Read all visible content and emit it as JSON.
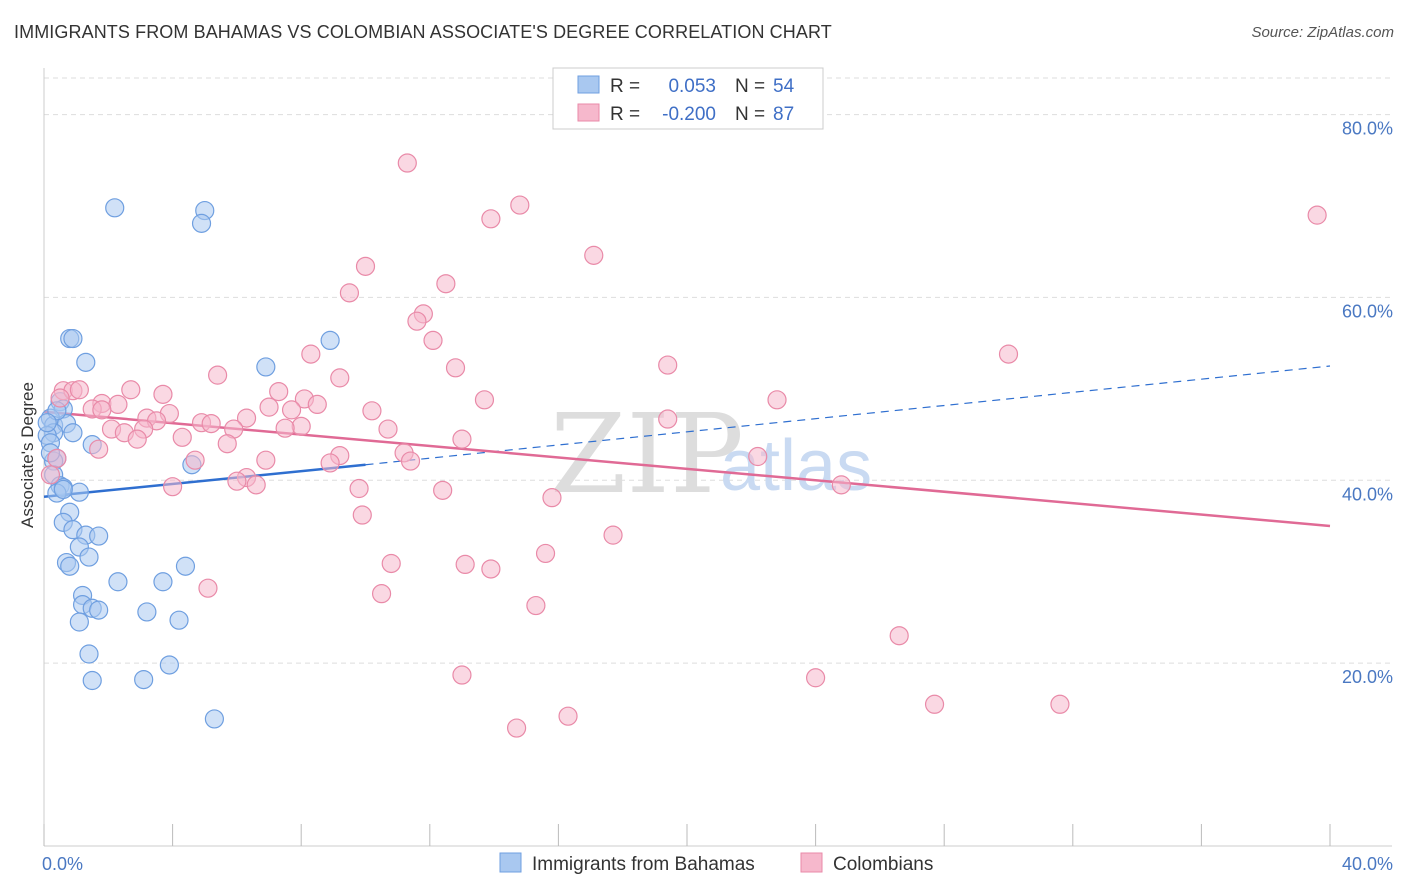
{
  "title": "IMMIGRANTS FROM BAHAMAS VS COLOMBIAN ASSOCIATE'S DEGREE CORRELATION CHART",
  "source": "Source: ZipAtlas.com",
  "watermark": {
    "zip": "ZIP",
    "atlas": "atlas"
  },
  "colors": {
    "blue_fill": "#a9c8f0",
    "blue_stroke": "#6f9fe0",
    "blue_line": "#2f6fd0",
    "pink_fill": "#f6b8cc",
    "pink_stroke": "#e98aa8",
    "pink_line": "#e06a95",
    "grid": "#dddddd",
    "tick_text": "#4a78c2"
  },
  "legend": {
    "rows": [
      {
        "r_label": "R =",
        "r_value": "0.053",
        "n_label": "N =",
        "n_value": "54"
      },
      {
        "r_label": "R =",
        "r_value": "-0.200",
        "n_label": "N =",
        "n_value": "87"
      }
    ]
  },
  "bottom_legend": [
    "Immigrants from Bahamas",
    "Colombians"
  ],
  "chart_data": {
    "type": "scatter",
    "title": "IMMIGRANTS FROM BAHAMAS VS COLOMBIAN ASSOCIATE'S DEGREE CORRELATION CHART",
    "xlabel": "",
    "ylabel": "Associate's Degree",
    "xlim": [
      0,
      40
    ],
    "ylim": [
      0,
      84
    ],
    "x_tick_labels": [
      "0.0%",
      "40.0%"
    ],
    "y_ticks": [
      20,
      40,
      60,
      80
    ],
    "y_tick_labels": [
      "20.0%",
      "40.0%",
      "60.0%",
      "80.0%"
    ],
    "grid": true,
    "legend_position": "top-center",
    "series": [
      {
        "name": "Immigrants from Bahamas",
        "r": 0.053,
        "n": 54,
        "trend": {
          "x": [
            0,
            10
          ],
          "y": [
            38.2,
            41.7
          ],
          "extended_to": [
            40,
            52.5
          ]
        },
        "points": [
          [
            2.2,
            69.8
          ],
          [
            5.0,
            69.5
          ],
          [
            4.9,
            68.1
          ],
          [
            0.8,
            55.5
          ],
          [
            0.9,
            55.5
          ],
          [
            8.9,
            55.3
          ],
          [
            1.3,
            52.9
          ],
          [
            6.9,
            52.4
          ],
          [
            0.5,
            48.6
          ],
          [
            0.6,
            47.8
          ],
          [
            0.2,
            46.8
          ],
          [
            0.3,
            46.0
          ],
          [
            0.7,
            46.2
          ],
          [
            0.3,
            45.2
          ],
          [
            0.1,
            44.9
          ],
          [
            0.9,
            45.2
          ],
          [
            0.2,
            44.1
          ],
          [
            1.5,
            43.9
          ],
          [
            0.4,
            42.4
          ],
          [
            0.3,
            42.1
          ],
          [
            4.6,
            41.7
          ],
          [
            0.3,
            40.6
          ],
          [
            0.5,
            39.4
          ],
          [
            0.6,
            39.2
          ],
          [
            0.4,
            38.6
          ],
          [
            1.1,
            38.7
          ],
          [
            0.8,
            36.5
          ],
          [
            0.6,
            35.4
          ],
          [
            0.9,
            34.6
          ],
          [
            1.3,
            34.0
          ],
          [
            1.7,
            33.9
          ],
          [
            1.1,
            32.7
          ],
          [
            1.4,
            31.6
          ],
          [
            0.7,
            31.0
          ],
          [
            0.8,
            30.6
          ],
          [
            4.4,
            30.6
          ],
          [
            2.3,
            28.9
          ],
          [
            3.7,
            28.9
          ],
          [
            1.2,
            27.4
          ],
          [
            1.2,
            26.4
          ],
          [
            1.5,
            26.0
          ],
          [
            1.7,
            25.8
          ],
          [
            3.2,
            25.6
          ],
          [
            4.2,
            24.7
          ],
          [
            1.1,
            24.5
          ],
          [
            1.4,
            21.0
          ],
          [
            3.9,
            19.8
          ],
          [
            1.5,
            18.1
          ],
          [
            3.1,
            18.2
          ],
          [
            5.3,
            13.9
          ],
          [
            0.4,
            47.6
          ],
          [
            0.1,
            46.3
          ],
          [
            0.2,
            43.0
          ],
          [
            0.6,
            39.0
          ]
        ]
      },
      {
        "name": "Colombians",
        "r": -0.2,
        "n": 87,
        "trend": {
          "x": [
            0,
            40
          ],
          "y": [
            47.5,
            35.0
          ]
        },
        "points": [
          [
            11.3,
            74.7
          ],
          [
            14.8,
            70.1
          ],
          [
            13.9,
            68.6
          ],
          [
            39.6,
            69.0
          ],
          [
            17.1,
            64.6
          ],
          [
            10.0,
            63.4
          ],
          [
            12.5,
            61.5
          ],
          [
            9.5,
            60.5
          ],
          [
            11.8,
            58.2
          ],
          [
            11.6,
            57.4
          ],
          [
            12.1,
            55.3
          ],
          [
            30.0,
            53.8
          ],
          [
            8.3,
            53.8
          ],
          [
            19.4,
            52.6
          ],
          [
            12.8,
            52.3
          ],
          [
            5.4,
            51.5
          ],
          [
            9.2,
            51.2
          ],
          [
            0.6,
            49.8
          ],
          [
            0.9,
            49.8
          ],
          [
            1.1,
            49.9
          ],
          [
            2.7,
            49.9
          ],
          [
            3.7,
            49.4
          ],
          [
            1.8,
            48.4
          ],
          [
            2.3,
            48.3
          ],
          [
            7.3,
            49.7
          ],
          [
            8.1,
            48.9
          ],
          [
            8.5,
            48.3
          ],
          [
            13.7,
            48.8
          ],
          [
            22.8,
            48.8
          ],
          [
            7.0,
            48.0
          ],
          [
            7.7,
            47.7
          ],
          [
            10.2,
            47.6
          ],
          [
            1.5,
            47.8
          ],
          [
            1.8,
            47.7
          ],
          [
            3.9,
            47.3
          ],
          [
            3.2,
            46.8
          ],
          [
            3.5,
            46.5
          ],
          [
            4.9,
            46.3
          ],
          [
            5.2,
            46.2
          ],
          [
            6.3,
            46.8
          ],
          [
            8.0,
            45.9
          ],
          [
            7.5,
            45.7
          ],
          [
            5.9,
            45.6
          ],
          [
            10.7,
            45.6
          ],
          [
            3.1,
            45.6
          ],
          [
            2.1,
            45.6
          ],
          [
            2.5,
            45.2
          ],
          [
            4.3,
            44.7
          ],
          [
            2.9,
            44.5
          ],
          [
            13.0,
            44.5
          ],
          [
            5.7,
            44.0
          ],
          [
            11.2,
            43.0
          ],
          [
            9.2,
            42.7
          ],
          [
            1.7,
            43.4
          ],
          [
            4.7,
            42.2
          ],
          [
            6.9,
            42.2
          ],
          [
            11.4,
            42.1
          ],
          [
            8.9,
            41.9
          ],
          [
            0.4,
            42.4
          ],
          [
            0.2,
            40.6
          ],
          [
            6.3,
            40.3
          ],
          [
            6.0,
            39.9
          ],
          [
            6.6,
            39.5
          ],
          [
            4.0,
            39.3
          ],
          [
            9.8,
            39.1
          ],
          [
            12.4,
            38.9
          ],
          [
            15.8,
            38.1
          ],
          [
            22.2,
            42.6
          ],
          [
            24.8,
            39.5
          ],
          [
            19.4,
            46.7
          ],
          [
            9.9,
            36.2
          ],
          [
            17.7,
            34.0
          ],
          [
            15.6,
            32.0
          ],
          [
            10.8,
            30.9
          ],
          [
            13.1,
            30.8
          ],
          [
            13.9,
            30.3
          ],
          [
            5.1,
            28.2
          ],
          [
            10.5,
            27.6
          ],
          [
            15.3,
            26.3
          ],
          [
            26.6,
            23.0
          ],
          [
            13.0,
            18.7
          ],
          [
            24.0,
            18.4
          ],
          [
            27.7,
            15.5
          ],
          [
            31.6,
            15.5
          ],
          [
            16.3,
            14.2
          ],
          [
            14.7,
            12.9
          ],
          [
            0.5,
            49.0
          ]
        ]
      }
    ]
  }
}
